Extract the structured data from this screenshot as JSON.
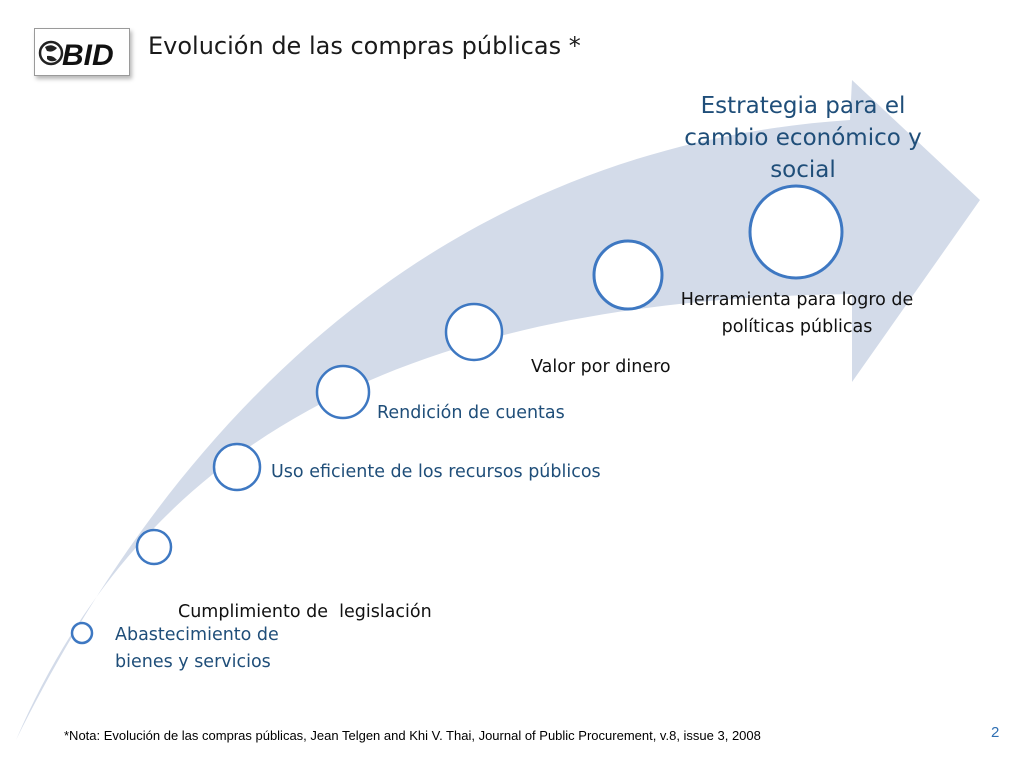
{
  "header": {
    "logo_text": "BID",
    "title": "Evolución de las compras públicas *"
  },
  "diagram": {
    "top_label": "Estrategia para el cambio económico y social",
    "stages": [
      {
        "id": "abastecimiento",
        "lines": [
          "Abastecimiento de",
          "bienes y servicios"
        ],
        "color": "#1f4e79"
      },
      {
        "id": "cumplimiento",
        "lines": [
          "Cumplimiento de  legislación"
        ],
        "color": "#111111"
      },
      {
        "id": "uso-eficiente",
        "lines": [
          "Uso eficiente de los recursos públicos"
        ],
        "color": "#1f4e79"
      },
      {
        "id": "rendicion",
        "lines": [
          "Rendición de cuentas"
        ],
        "color": "#1f4e79"
      },
      {
        "id": "valor",
        "lines": [
          "Valor por dinero"
        ],
        "color": "#111111"
      },
      {
        "id": "herramienta",
        "lines": [
          "Herramienta para logro de",
          "políticas públicas"
        ],
        "color": "#111111"
      }
    ],
    "arrow_color": "#d3dbe9",
    "circle_stroke": "#3e78c2"
  },
  "footer": {
    "note": "*Nota: Evolución de las compras públicas, Jean Telgen and Khi V. Thai, Journal of Public Procurement, v.8, issue 3, 2008",
    "page_number": "2"
  }
}
